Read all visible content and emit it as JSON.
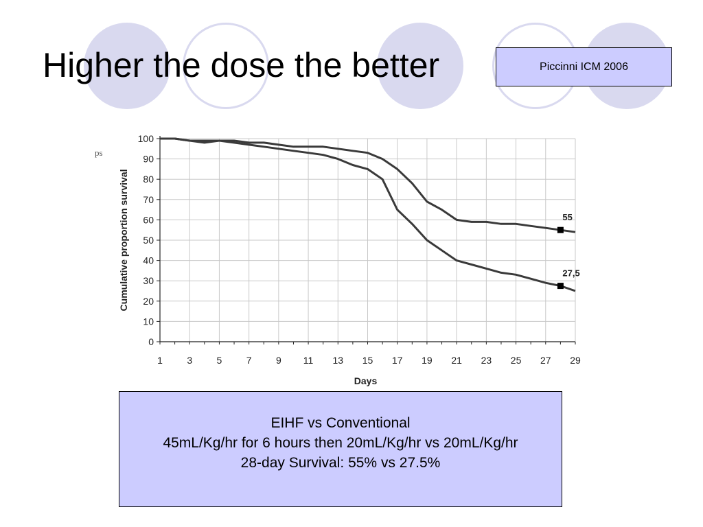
{
  "slide": {
    "title": "Higher the dose the better",
    "citation": "Piccinni ICM 2006",
    "corner_fragment": "ps",
    "summary": {
      "line1": "EIHF vs Conventional",
      "line2": "45mL/Kg/hr for 6 hours then 20mL/Kg/hr vs 20mL/Kg/hr",
      "line3": "28-day Survival: 55% vs 27.5%"
    },
    "colors": {
      "circle_fill": "#d9d9ef",
      "box_fill": "#ccccff",
      "line": "#3a3a3a"
    }
  },
  "chart_data": {
    "type": "line",
    "xlabel": "Days",
    "ylabel": "Cumulative proportion survival",
    "xlim": [
      1,
      29
    ],
    "ylim": [
      0,
      100
    ],
    "x_ticks": [
      "1",
      "3",
      "5",
      "7",
      "9",
      "11",
      "13",
      "15",
      "17",
      "19",
      "21",
      "23",
      "25",
      "27",
      "29"
    ],
    "y_ticks": [
      "0",
      "10",
      "20",
      "30",
      "40",
      "50",
      "60",
      "70",
      "80",
      "90",
      "100"
    ],
    "grid": true,
    "series": [
      {
        "end_label": "55",
        "end_value": 55,
        "end_day": 28,
        "x": [
          1,
          2,
          3,
          4,
          5,
          6,
          7,
          8,
          9,
          10,
          11,
          12,
          13,
          14,
          15,
          16,
          17,
          18,
          19,
          20,
          21,
          22,
          23,
          24,
          25,
          26,
          27,
          28,
          29
        ],
        "y": [
          100,
          100,
          99,
          99,
          99,
          99,
          98,
          98,
          97,
          96,
          96,
          96,
          95,
          94,
          93,
          90,
          85,
          78,
          69,
          65,
          60,
          59,
          59,
          58,
          58,
          57,
          56,
          55,
          54
        ]
      },
      {
        "end_label": "27,5",
        "end_value": 27.5,
        "end_day": 28,
        "x": [
          1,
          2,
          3,
          4,
          5,
          6,
          7,
          8,
          9,
          10,
          11,
          12,
          13,
          14,
          15,
          16,
          17,
          18,
          19,
          20,
          21,
          22,
          23,
          24,
          25,
          26,
          27,
          28,
          29
        ],
        "y": [
          100,
          100,
          99,
          98,
          99,
          98,
          97,
          96,
          95,
          94,
          93,
          92,
          90,
          87,
          85,
          80,
          65,
          58,
          50,
          45,
          40,
          38,
          36,
          34,
          33,
          31,
          29,
          27.5,
          25
        ]
      }
    ]
  }
}
